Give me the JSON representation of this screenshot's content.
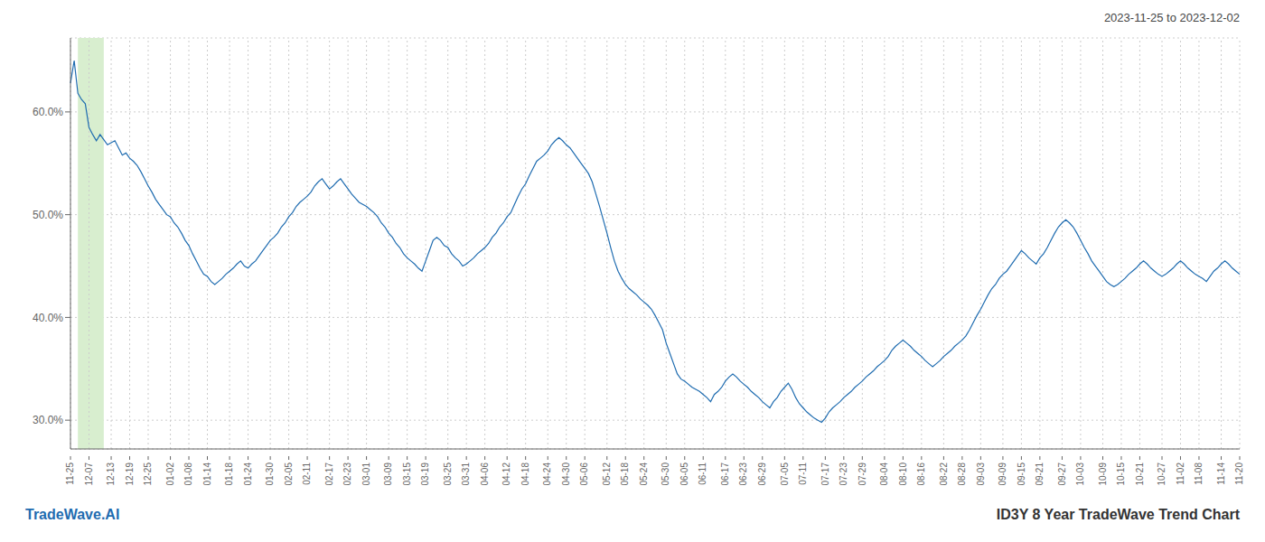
{
  "chart_data": {
    "type": "line",
    "title": "2023-11-25 to 2023-12-02",
    "annotations": [
      "TradeWave.AI",
      "ID3Y 8 Year TradeWave Trend Chart"
    ],
    "categories": [
      "11-25",
      null,
      null,
      null,
      null,
      "12-07",
      null,
      null,
      null,
      null,
      null,
      "12-13",
      null,
      null,
      null,
      null,
      "12-19",
      null,
      null,
      null,
      null,
      "12-25",
      null,
      null,
      null,
      null,
      null,
      "01-02",
      null,
      null,
      null,
      null,
      "01-08",
      null,
      null,
      null,
      null,
      "01-14",
      null,
      null,
      null,
      null,
      null,
      "01-18",
      null,
      null,
      null,
      null,
      "01-24",
      null,
      null,
      null,
      null,
      null,
      "01-30",
      null,
      null,
      null,
      null,
      "02-05",
      null,
      null,
      null,
      null,
      "02-11",
      null,
      null,
      null,
      null,
      null,
      "02-17",
      null,
      null,
      null,
      null,
      "02-23",
      null,
      null,
      null,
      null,
      "03-01",
      null,
      null,
      null,
      null,
      null,
      "03-09",
      null,
      null,
      null,
      null,
      "03-15",
      null,
      null,
      null,
      null,
      "03-19",
      null,
      null,
      null,
      null,
      null,
      "03-25",
      null,
      null,
      null,
      null,
      "03-31",
      null,
      null,
      null,
      null,
      "04-06",
      null,
      null,
      null,
      null,
      null,
      "04-12",
      null,
      null,
      null,
      null,
      "04-18",
      null,
      null,
      null,
      null,
      null,
      "04-24",
      null,
      null,
      null,
      null,
      "04-30",
      null,
      null,
      null,
      null,
      "05-06",
      null,
      null,
      null,
      null,
      null,
      "05-12",
      null,
      null,
      null,
      null,
      "05-18",
      null,
      null,
      null,
      null,
      "05-24",
      null,
      null,
      null,
      null,
      null,
      "05-30",
      null,
      null,
      null,
      null,
      "06-05",
      null,
      null,
      null,
      null,
      "06-11",
      null,
      null,
      null,
      null,
      null,
      "06-17",
      null,
      null,
      null,
      null,
      "06-23",
      null,
      null,
      null,
      null,
      "06-29",
      null,
      null,
      null,
      null,
      null,
      "07-05",
      null,
      null,
      null,
      null,
      "07-11",
      null,
      null,
      null,
      null,
      null,
      "07-17",
      null,
      null,
      null,
      null,
      "07-23",
      null,
      null,
      null,
      null,
      "07-29",
      null,
      null,
      null,
      null,
      null,
      "08-04",
      null,
      null,
      null,
      null,
      "08-10",
      null,
      null,
      null,
      null,
      "08-16",
      null,
      null,
      null,
      null,
      null,
      "08-22",
      null,
      null,
      null,
      null,
      "08-28",
      null,
      null,
      null,
      null,
      "09-03",
      null,
      null,
      null,
      null,
      null,
      "09-09",
      null,
      null,
      null,
      null,
      "09-15",
      null,
      null,
      null,
      null,
      "09-21",
      null,
      null,
      null,
      null,
      null,
      "09-27",
      null,
      null,
      null,
      null,
      "10-03",
      null,
      null,
      null,
      null,
      null,
      "10-09",
      null,
      null,
      null,
      null,
      "10-15",
      null,
      null,
      null,
      null,
      "10-21",
      null,
      null,
      null,
      null,
      null,
      "10-27",
      null,
      null,
      null,
      null,
      "11-02",
      null,
      null,
      null,
      null,
      "11-08",
      null,
      null,
      null,
      null,
      null,
      "11-14",
      null,
      null,
      null,
      null,
      "11-20"
    ],
    "values": [
      0.628,
      0.65,
      0.618,
      0.612,
      0.608,
      0.585,
      0.578,
      0.572,
      0.578,
      0.573,
      0.568,
      0.57,
      0.572,
      0.565,
      0.558,
      0.56,
      0.555,
      0.552,
      0.548,
      0.542,
      0.535,
      0.528,
      0.522,
      0.515,
      0.51,
      0.505,
      0.5,
      0.498,
      0.492,
      0.488,
      0.482,
      0.475,
      0.47,
      0.462,
      0.455,
      0.448,
      0.442,
      0.44,
      0.435,
      0.432,
      0.435,
      0.438,
      0.442,
      0.445,
      0.448,
      0.452,
      0.455,
      0.45,
      0.448,
      0.452,
      0.455,
      0.46,
      0.465,
      0.47,
      0.475,
      0.478,
      0.482,
      0.488,
      0.492,
      0.498,
      0.502,
      0.508,
      0.512,
      0.515,
      0.518,
      0.522,
      0.528,
      0.532,
      0.535,
      0.53,
      0.525,
      0.528,
      0.532,
      0.535,
      0.53,
      0.525,
      0.52,
      0.516,
      0.512,
      0.51,
      0.508,
      0.505,
      0.502,
      0.498,
      0.492,
      0.488,
      0.482,
      0.478,
      0.472,
      0.468,
      0.462,
      0.458,
      0.455,
      0.452,
      0.448,
      0.445,
      0.455,
      0.465,
      0.475,
      0.478,
      0.475,
      0.47,
      0.468,
      0.462,
      0.458,
      0.455,
      0.45,
      0.452,
      0.455,
      0.458,
      0.462,
      0.465,
      0.468,
      0.472,
      0.478,
      0.482,
      0.488,
      0.492,
      0.498,
      0.502,
      0.51,
      0.518,
      0.525,
      0.53,
      0.538,
      0.545,
      0.552,
      0.555,
      0.558,
      0.562,
      0.568,
      0.572,
      0.575,
      0.572,
      0.568,
      0.565,
      0.56,
      0.555,
      0.55,
      0.545,
      0.54,
      0.532,
      0.52,
      0.508,
      0.495,
      0.482,
      0.468,
      0.455,
      0.445,
      0.438,
      0.432,
      0.428,
      0.425,
      0.422,
      0.418,
      0.415,
      0.412,
      0.408,
      0.402,
      0.395,
      0.388,
      0.375,
      0.365,
      0.355,
      0.345,
      0.34,
      0.338,
      0.335,
      0.332,
      0.33,
      0.328,
      0.325,
      0.322,
      0.318,
      0.325,
      0.328,
      0.332,
      0.338,
      0.342,
      0.345,
      0.342,
      0.338,
      0.335,
      0.332,
      0.328,
      0.325,
      0.322,
      0.318,
      0.315,
      0.312,
      0.318,
      0.322,
      0.328,
      0.332,
      0.336,
      0.33,
      0.322,
      0.316,
      0.312,
      0.308,
      0.305,
      0.302,
      0.3,
      0.298,
      0.302,
      0.308,
      0.312,
      0.315,
      0.318,
      0.322,
      0.325,
      0.328,
      0.332,
      0.335,
      0.338,
      0.342,
      0.345,
      0.348,
      0.352,
      0.355,
      0.358,
      0.362,
      0.368,
      0.372,
      0.375,
      0.378,
      0.375,
      0.372,
      0.368,
      0.365,
      0.362,
      0.358,
      0.355,
      0.352,
      0.355,
      0.358,
      0.362,
      0.365,
      0.368,
      0.372,
      0.375,
      0.378,
      0.382,
      0.388,
      0.395,
      0.402,
      0.408,
      0.415,
      0.422,
      0.428,
      0.432,
      0.438,
      0.442,
      0.445,
      0.45,
      0.455,
      0.46,
      0.465,
      0.462,
      0.458,
      0.455,
      0.452,
      0.458,
      0.462,
      0.468,
      0.475,
      0.482,
      0.488,
      0.492,
      0.495,
      0.492,
      0.488,
      0.482,
      0.475,
      0.468,
      0.462,
      0.455,
      0.45,
      0.445,
      0.44,
      0.435,
      0.432,
      0.43,
      0.432,
      0.435,
      0.438,
      0.442,
      0.445,
      0.448,
      0.452,
      0.455,
      0.452,
      0.448,
      0.445,
      0.442,
      0.44,
      0.442,
      0.445,
      0.448,
      0.452,
      0.455,
      0.452,
      0.448,
      0.445,
      0.442,
      0.44,
      0.438,
      0.435,
      0.44,
      0.445,
      0.448,
      0.452,
      0.455,
      0.452,
      0.448,
      0.445,
      0.442
    ],
    "color": "#1f6cb0",
    "highlight": {
      "from": 2,
      "to": 9,
      "color": "#d8eecf"
    },
    "ylim": [
      0.272,
      0.672
    ],
    "yticks": [
      {
        "value": 0.3,
        "label": "30.0%"
      },
      {
        "value": 0.4,
        "label": "40.0%"
      },
      {
        "value": 0.5,
        "label": "50.0%"
      },
      {
        "value": 0.6,
        "label": "60.0%"
      }
    ],
    "grid": true
  }
}
